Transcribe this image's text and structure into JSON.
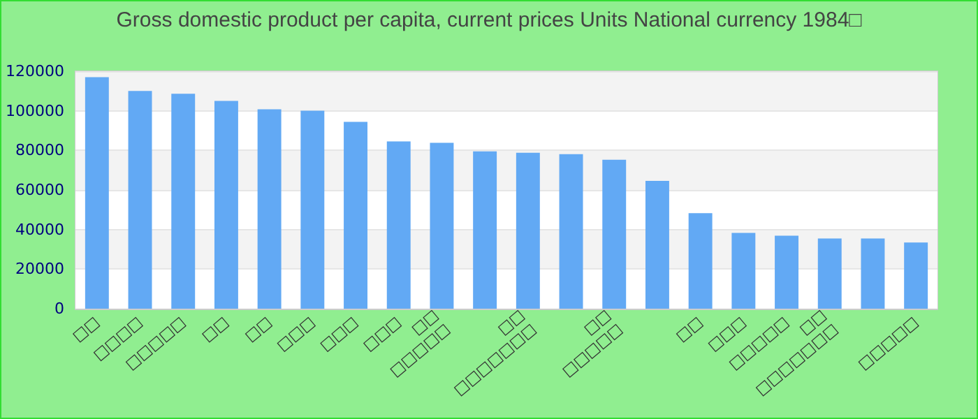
{
  "chart_data": {
    "type": "bar",
    "title": "Gross domestic product per capita, current prices Units National currency 1984□",
    "categories": [
      "□□",
      "□□□□",
      "□□□□□",
      "□□",
      "□□",
      "□□□",
      "□□□",
      "□□□",
      "□□\n□□□□□",
      null,
      "□□\n□□□□□□□",
      null,
      "□□\n□□□□□",
      null,
      "□□",
      "□□□",
      "□□□□□",
      "□□\n□□□□□□□",
      null,
      "□□□□□"
    ],
    "values": [
      117000,
      110000,
      108600,
      105000,
      100800,
      100100,
      94400,
      84500,
      83800,
      79500,
      78800,
      78100,
      75300,
      64600,
      48300,
      38300,
      36900,
      35500,
      35500,
      33400
    ],
    "color": "#62a9f4",
    "ylim": [
      0,
      120000
    ],
    "yticks": [
      0,
      20000,
      40000,
      60000,
      80000,
      100000,
      120000
    ],
    "grid": "y"
  }
}
